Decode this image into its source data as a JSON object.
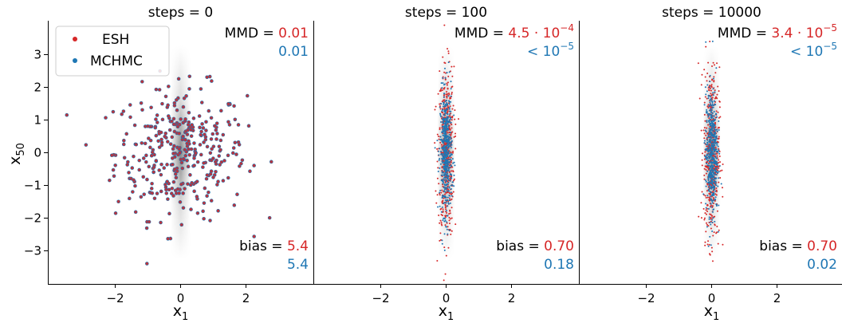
{
  "figure": {
    "ylabel_main": "x",
    "ylabel_sub": "50",
    "legend": {
      "placement": "upper-left of first panel",
      "entries": [
        {
          "label": "ESH",
          "color": "#d62728"
        },
        {
          "label": "MCHMC",
          "color": "#1f77b4"
        }
      ]
    }
  },
  "chart_data": [
    {
      "type": "scatter",
      "title": "steps = 0",
      "xlabel_main": "x",
      "xlabel_sub": "1",
      "xlim": [
        -4,
        4
      ],
      "ylim": [
        -4,
        4
      ],
      "xticks": [
        -2,
        0,
        2
      ],
      "xtick_labels": [
        "−2",
        "0",
        "2"
      ],
      "yticks": [
        -3,
        -2,
        -1,
        0,
        1,
        2,
        3
      ],
      "ytick_labels": [
        "−3",
        "−2",
        "−1",
        "0",
        "1",
        "2",
        "3"
      ],
      "show_yticks": true,
      "background": "grey density of the target along x1≈0, spread in x50",
      "series": [
        {
          "name": "ESH",
          "color": "#d62728",
          "spread_x1": 1.0,
          "spread_x50": 1.0,
          "n_points": 360
        },
        {
          "name": "MCHMC",
          "color": "#1f77b4",
          "spread_x1": 1.0,
          "spread_x50": 1.0,
          "n_points": 360
        }
      ],
      "annotations": {
        "mmd_label": "MMD = ",
        "mmd_esh": {
          "base": "0.01",
          "exp": ""
        },
        "mmd_mchmc": {
          "base": "0.01",
          "exp": ""
        },
        "bias_label": "bias = ",
        "bias_esh": "5.4",
        "bias_mchmc": "5.4"
      }
    },
    {
      "type": "scatter",
      "title": "steps = 100",
      "xlabel_main": "x",
      "xlabel_sub": "1",
      "xlim": [
        -4,
        4
      ],
      "ylim": [
        -4,
        4
      ],
      "xticks": [
        -2,
        0,
        2
      ],
      "xtick_labels": [
        "−2",
        "0",
        "2"
      ],
      "show_yticks": false,
      "background": "grey density of the target along x1≈0, spread in x50",
      "series": [
        {
          "name": "ESH",
          "color": "#d62728",
          "spread_x1": 0.12,
          "spread_x50": 1.3,
          "n_points": 500
        },
        {
          "name": "MCHMC",
          "color": "#1f77b4",
          "spread_x1": 0.09,
          "spread_x50": 0.95,
          "n_points": 500
        }
      ],
      "annotations": {
        "mmd_label": "MMD = ",
        "mmd_esh": {
          "base": "4.5 · 10",
          "exp": "−4"
        },
        "mmd_mchmc": {
          "base": "< 10",
          "exp": "−5"
        },
        "bias_label": "bias = ",
        "bias_esh": "0.70",
        "bias_mchmc": "0.18"
      }
    },
    {
      "type": "scatter",
      "title": "steps = 10000",
      "xlabel_main": "x",
      "xlabel_sub": "1",
      "xlim": [
        -4,
        4
      ],
      "ylim": [
        -4,
        4
      ],
      "xticks": [
        -2,
        0,
        2
      ],
      "xtick_labels": [
        "−2",
        "0",
        "2"
      ],
      "show_yticks": false,
      "background": "grey density of the target along x1≈0, spread in x50",
      "series": [
        {
          "name": "ESH",
          "color": "#d62728",
          "spread_x1": 0.12,
          "spread_x50": 1.3,
          "n_points": 500
        },
        {
          "name": "MCHMC",
          "color": "#1f77b4",
          "spread_x1": 0.09,
          "spread_x50": 0.95,
          "n_points": 500
        }
      ],
      "annotations": {
        "mmd_label": "MMD = ",
        "mmd_esh": {
          "base": "3.4 · 10",
          "exp": "−5"
        },
        "mmd_mchmc": {
          "base": "< 10",
          "exp": "−5"
        },
        "bias_label": "bias = ",
        "bias_esh": "0.70",
        "bias_mchmc": "0.02"
      }
    }
  ]
}
